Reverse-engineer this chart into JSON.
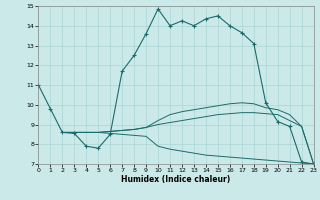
{
  "xlabel": "Humidex (Indice chaleur)",
  "xlim": [
    0,
    23
  ],
  "ylim": [
    7,
    15
  ],
  "xticks": [
    0,
    1,
    2,
    3,
    4,
    5,
    6,
    7,
    8,
    9,
    10,
    11,
    12,
    13,
    14,
    15,
    16,
    17,
    18,
    19,
    20,
    21,
    22,
    23
  ],
  "yticks": [
    7,
    8,
    9,
    10,
    11,
    12,
    13,
    14,
    15
  ],
  "bg_color": "#cce9e9",
  "grid_color": "#aad4d4",
  "line_color": "#1a6b6b",
  "line1_x": [
    0,
    1,
    2,
    3,
    4,
    5,
    6,
    7,
    8,
    9,
    10,
    11,
    12,
    13,
    14,
    15,
    16,
    17,
    18,
    19,
    20,
    21,
    22,
    23
  ],
  "line1_y": [
    11.0,
    9.8,
    8.6,
    8.55,
    7.9,
    7.8,
    8.5,
    11.7,
    12.5,
    13.6,
    14.85,
    14.0,
    14.25,
    14.0,
    14.35,
    14.5,
    14.0,
    13.65,
    13.1,
    10.1,
    9.15,
    8.9,
    7.1,
    7.0
  ],
  "line2_x": [
    2,
    3,
    4,
    5,
    6,
    7,
    8,
    9,
    10,
    11,
    12,
    13,
    14,
    15,
    16,
    17,
    18,
    19,
    20,
    21,
    22,
    23
  ],
  "line2_y": [
    8.6,
    8.6,
    8.6,
    8.6,
    8.65,
    8.7,
    8.75,
    8.85,
    9.0,
    9.1,
    9.2,
    9.3,
    9.4,
    9.5,
    9.55,
    9.6,
    9.6,
    9.55,
    9.5,
    9.2,
    8.9,
    7.0
  ],
  "line3_x": [
    2,
    3,
    4,
    5,
    6,
    7,
    8,
    9,
    10,
    11,
    12,
    13,
    14,
    15,
    16,
    17,
    18,
    19,
    20,
    21,
    22,
    23
  ],
  "line3_y": [
    8.6,
    8.6,
    8.6,
    8.6,
    8.65,
    8.7,
    8.75,
    8.85,
    9.2,
    9.5,
    9.65,
    9.75,
    9.85,
    9.95,
    10.05,
    10.1,
    10.05,
    9.85,
    9.75,
    9.5,
    8.9,
    7.0
  ],
  "line4_x": [
    2,
    3,
    4,
    5,
    6,
    7,
    8,
    9,
    10,
    11,
    12,
    13,
    14,
    15,
    16,
    17,
    18,
    19,
    20,
    21,
    22,
    23
  ],
  "line4_y": [
    8.6,
    8.6,
    8.6,
    8.6,
    8.55,
    8.5,
    8.45,
    8.4,
    7.9,
    7.75,
    7.65,
    7.55,
    7.45,
    7.4,
    7.35,
    7.3,
    7.25,
    7.2,
    7.15,
    7.1,
    7.05,
    7.0
  ]
}
